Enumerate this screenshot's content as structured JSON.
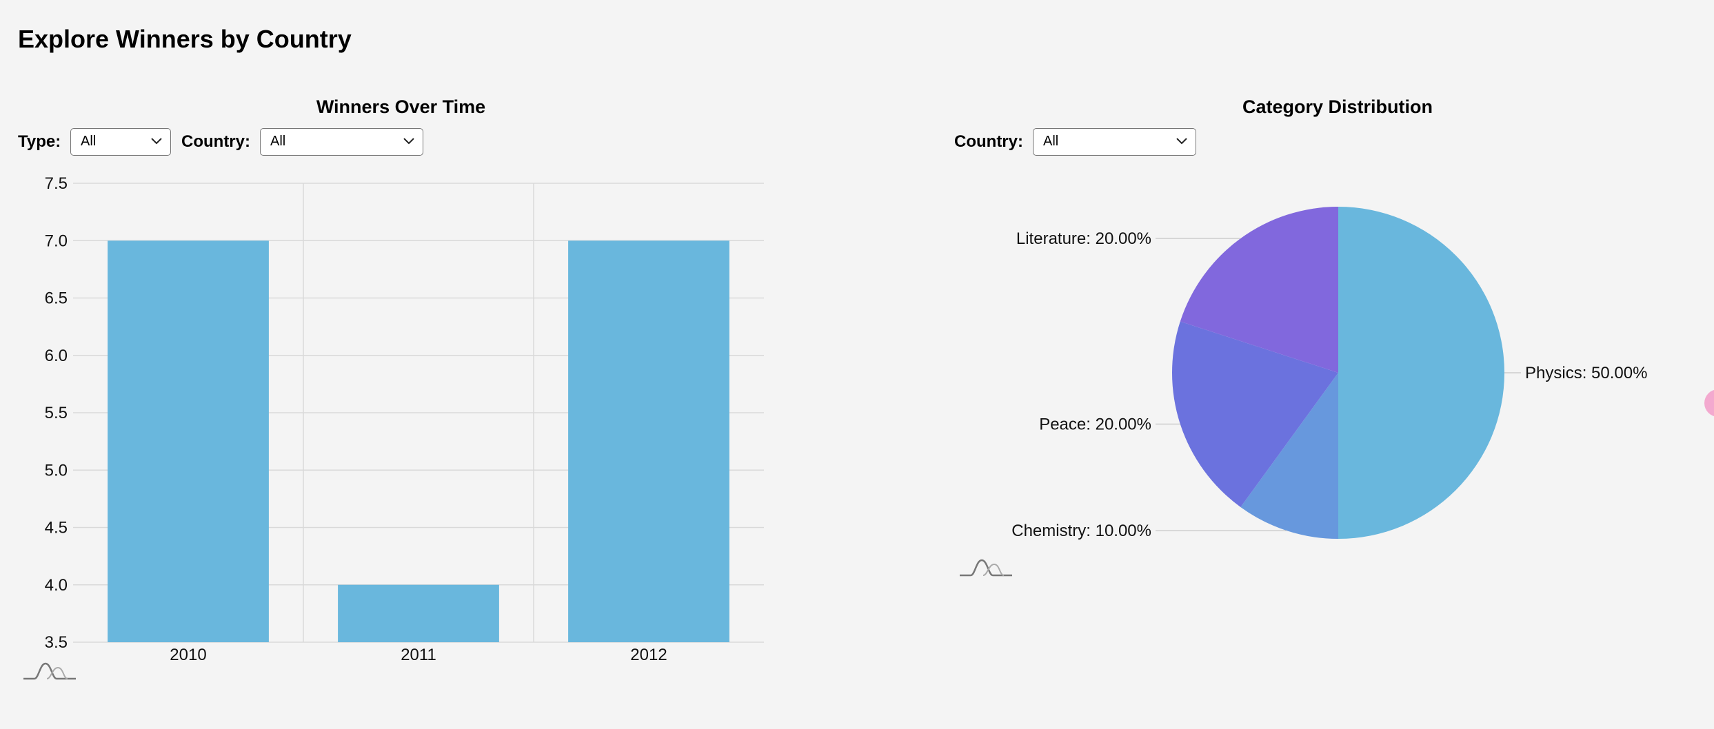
{
  "page": {
    "title": "Explore Winners by Country"
  },
  "left_panel": {
    "title": "Winners Over Time",
    "type_label": "Type:",
    "type_value": "All",
    "country_label": "Country:",
    "country_value": "All"
  },
  "right_panel": {
    "title": "Category Distribution",
    "country_label": "Country:",
    "country_value": "All"
  },
  "icons": [
    "chevron-down-icon",
    "wave-icon"
  ],
  "chart_data": [
    {
      "type": "bar",
      "title": "Winners Over Time",
      "categories": [
        "2010",
        "2011",
        "2012"
      ],
      "values": [
        7,
        4,
        7
      ],
      "ylim": [
        3.5,
        7.5
      ],
      "yticks": [
        "7.5",
        "7.0",
        "6.5",
        "6.0",
        "5.5",
        "5.0",
        "4.5",
        "4.0",
        "3.5"
      ],
      "grid": true,
      "color": "#69b7dd"
    },
    {
      "type": "pie",
      "title": "Category Distribution",
      "slices": [
        {
          "label": "Physics: 50.00%",
          "value": 50,
          "color": "#69b7dd"
        },
        {
          "label": "Chemistry: 10.00%",
          "value": 10,
          "color": "#6798dd"
        },
        {
          "label": "Peace: 20.00%",
          "value": 20,
          "color": "#6b72de"
        },
        {
          "label": "Literature: 20.00%",
          "value": 20,
          "color": "#8168dd"
        }
      ]
    }
  ]
}
